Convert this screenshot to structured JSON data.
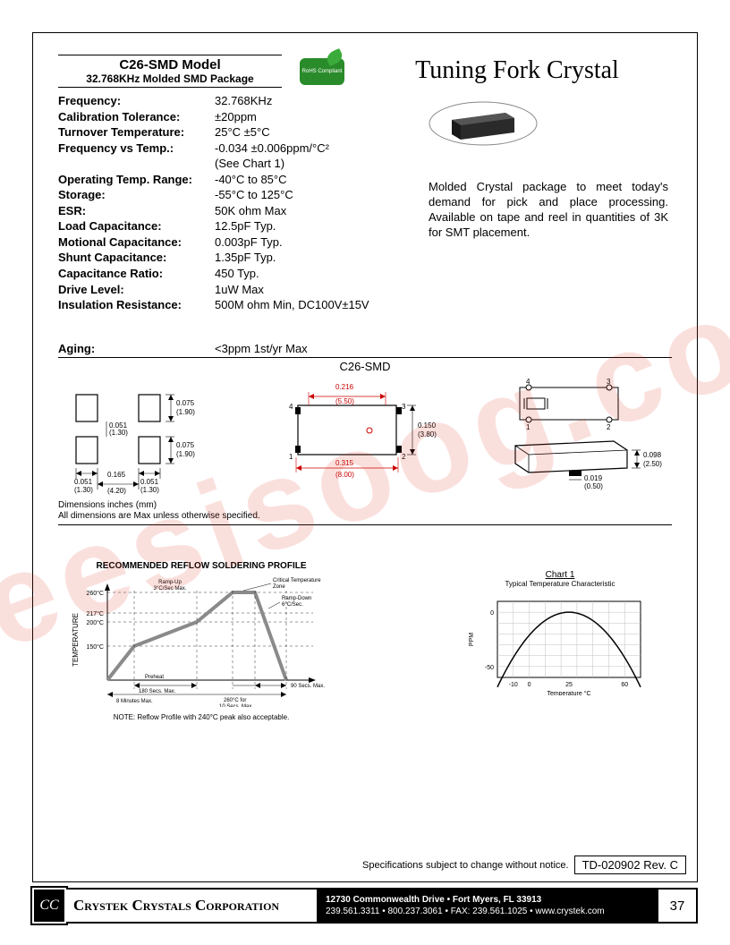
{
  "watermark": "iseesisoog.com",
  "model": {
    "title": "C26-SMD Model",
    "subtitle": "32.768KHz Molded SMD Package"
  },
  "rohs": "RoHS Compliant",
  "main_title": "Tuning Fork Crystal",
  "specs": [
    {
      "label": "Frequency:",
      "value": "32.768KHz"
    },
    {
      "label": "Calibration Tolerance:",
      "value": "±20ppm"
    },
    {
      "label": "Turnover Temperature:",
      "value": "25°C ±5°C"
    },
    {
      "label": "Frequency vs Temp.:",
      "value": "-0.034 ±0.006ppm/°C²"
    },
    {
      "label": "",
      "value": "(See Chart 1)"
    },
    {
      "label": "Operating Temp. Range:",
      "value": "-40°C to 85°C"
    },
    {
      "label": "Storage:",
      "value": "-55°C to 125°C"
    },
    {
      "label": "ESR:",
      "value": "50K ohm Max"
    },
    {
      "label": "Load Capacitance:",
      "value": "12.5pF Typ."
    },
    {
      "label": "Motional Capacitance:",
      "value": "0.003pF Typ."
    },
    {
      "label": "Shunt Capacitance:",
      "value": "1.35pF Typ."
    },
    {
      "label": "Capacitance Ratio:",
      "value": "450 Typ."
    },
    {
      "label": "Drive Level:",
      "value": "1uW Max"
    },
    {
      "label": "Insulation Resistance:",
      "value": "500M ohm Min, DC100V±15V"
    }
  ],
  "description": "Molded Crystal package to meet today's demand for pick and place processing. Available on tape and reel in quantities of 3K for SMT placement.",
  "aging": {
    "label": "Aging:",
    "value": "<3ppm 1st/yr Max"
  },
  "diagram_title": "C26-SMD",
  "dimensions": {
    "pad_w": {
      "in": "0.051",
      "mm": "(1.30)"
    },
    "pad_gap": {
      "in": "0.165",
      "mm": "(4.20)"
    },
    "pad_h": {
      "in": "0.075",
      "mm": "(1.90)"
    },
    "pad_vgap": {
      "in": "0.051",
      "mm": "(1.30)"
    },
    "body_w_inner": {
      "in": "0.216",
      "mm": "(5.50)"
    },
    "body_w_outer": {
      "in": "0.315",
      "mm": "(8.00)"
    },
    "body_h": {
      "in": "0.150",
      "mm": "(3.80)"
    },
    "side_h": {
      "in": "0.098",
      "mm": "(2.50)"
    },
    "side_lead": {
      "in": "0.019",
      "mm": "(0.50)"
    },
    "pins": {
      "p1": "1",
      "p2": "2",
      "p3": "3",
      "p4": "4"
    }
  },
  "dims_note1": "Dimensions  inches (mm)",
  "dims_note2": "All dimensions are Max unless otherwise specified.",
  "reflow": {
    "title": "RECOMMENDED REFLOW SOLDERING PROFILE",
    "y_label": "TEMPERATURE",
    "y_ticks": [
      "260°C",
      "217°C",
      "200°C",
      "150°C"
    ],
    "annotations": {
      "ramp_up": "Ramp-Up\n3°C/Sec Max.",
      "critical": "Critical Temperature\nZone",
      "ramp_down": "Ramp-Down\n6°C/Sec.",
      "preheat": "Preheat\n180 Secs. Max.",
      "total": "8 Minutes Max.",
      "peak_hold": "260°C for\n10 Secs. Max.",
      "cool": "90 Secs. Max."
    },
    "note": "NOTE:  Reflow Profile with 240°C peak also acceptable.",
    "profile_color": "#8a8a8a",
    "axis_color": "#000000"
  },
  "chart1": {
    "title": "Chart 1",
    "subtitle": "Typical Temperature Characteristic",
    "y_label": "PPM",
    "y_ticks": [
      0,
      -50
    ],
    "x_label": "Temperature °C",
    "x_ticks": [
      -10,
      0,
      25,
      60
    ],
    "curve_color": "#000000",
    "grid_color": "#c0c0c0",
    "bg_color": "#ffffff",
    "xlim": [
      -20,
      70
    ],
    "ylim": [
      -60,
      10
    ],
    "parabola_a": -0.034
  },
  "footer": {
    "disclaimer": "Specifications subject to change without notice.",
    "rev": "TD-020902 Rev. C"
  },
  "company": {
    "logo": "CC",
    "name": "Crystek Crystals Corporation",
    "addr1": "12730 Commonwealth Drive • Fort Myers, FL  33913",
    "addr2": "239.561.3311 • 800.237.3061 • FAX: 239.561.1025 • www.crystek.com",
    "page": "37"
  }
}
